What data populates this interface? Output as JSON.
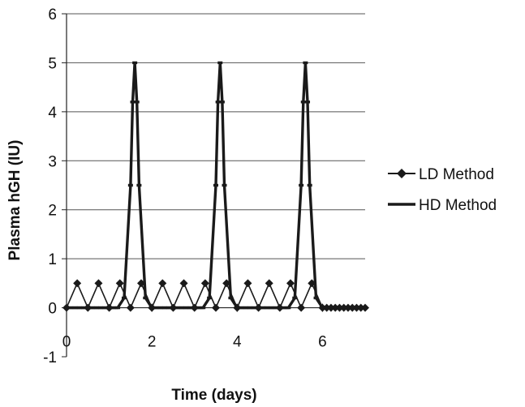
{
  "chart_data": {
    "type": "line",
    "xlabel": "Time (days)",
    "ylabel": "Plasma hGH (IU)",
    "xlim": [
      0,
      7
    ],
    "ylim": [
      -1,
      6
    ],
    "x_ticks": [
      "0",
      "2",
      "4",
      "6"
    ],
    "y_ticks": [
      "-1",
      "0",
      "1",
      "2",
      "3",
      "4",
      "5",
      "6"
    ],
    "grid": "horizontal",
    "legend_position": "right",
    "series": [
      {
        "name": "LD Method",
        "marker": "diamond",
        "color": "#1a1a1a",
        "x": [
          0,
          0.25,
          0.5,
          0.75,
          1.0,
          1.25,
          1.5,
          1.75,
          2.0,
          2.25,
          2.5,
          2.75,
          3.0,
          3.25,
          3.5,
          3.75,
          4.0,
          4.25,
          4.5,
          4.75,
          5.0,
          5.25,
          5.5,
          5.75,
          6.0,
          6.1,
          6.2,
          6.3,
          6.4,
          6.5,
          6.6,
          6.7,
          6.8,
          6.9,
          7.0
        ],
        "y": [
          0,
          0.5,
          0,
          0.5,
          0,
          0.5,
          0,
          0.5,
          0,
          0.5,
          0,
          0.5,
          0,
          0.5,
          0,
          0.5,
          0,
          0.5,
          0,
          0.5,
          0,
          0.5,
          0,
          0.5,
          0,
          0,
          0,
          0,
          0,
          0,
          0,
          0,
          0,
          0,
          0
        ]
      },
      {
        "name": "HD Method",
        "marker": "dash",
        "color": "#1a1a1a",
        "x": [
          0,
          0.1,
          0.2,
          0.3,
          0.4,
          0.5,
          0.6,
          0.7,
          0.8,
          0.9,
          1.0,
          1.1,
          1.2,
          1.35,
          1.5,
          1.55,
          1.6,
          1.65,
          1.7,
          1.85,
          2.0,
          2.1,
          2.2,
          2.3,
          2.4,
          2.5,
          2.6,
          2.7,
          2.8,
          2.9,
          3.0,
          3.1,
          3.2,
          3.35,
          3.5,
          3.55,
          3.6,
          3.65,
          3.7,
          3.85,
          4.0,
          4.1,
          4.2,
          4.3,
          4.4,
          4.5,
          4.6,
          4.7,
          4.8,
          4.9,
          5.0,
          5.1,
          5.2,
          5.35,
          5.5,
          5.55,
          5.6,
          5.65,
          5.7,
          5.85,
          6.0,
          6.1,
          6.2,
          6.3,
          6.4,
          6.5,
          6.6,
          6.7,
          6.8,
          6.9,
          7.0
        ],
        "y": [
          0,
          0,
          0,
          0,
          0,
          0,
          0,
          0,
          0,
          0,
          0,
          0,
          0,
          0.2,
          2.5,
          4.2,
          5.0,
          4.2,
          2.5,
          0.2,
          0,
          0,
          0,
          0,
          0,
          0,
          0,
          0,
          0,
          0,
          0,
          0,
          0,
          0.2,
          2.5,
          4.2,
          5.0,
          4.2,
          2.5,
          0.2,
          0,
          0,
          0,
          0,
          0,
          0,
          0,
          0,
          0,
          0,
          0,
          0,
          0,
          0.2,
          2.5,
          4.2,
          5.0,
          4.2,
          2.5,
          0.2,
          0,
          0,
          0,
          0,
          0,
          0,
          0,
          0,
          0,
          0,
          0
        ]
      }
    ]
  }
}
